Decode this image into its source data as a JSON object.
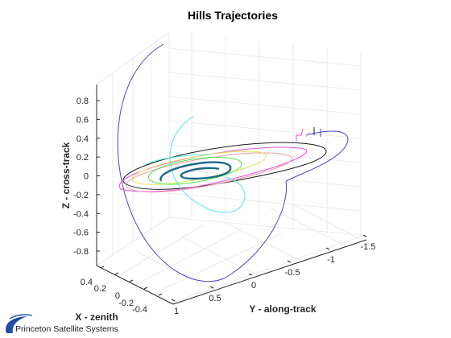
{
  "chart_data": {
    "type": "line",
    "title": "Hills Trajectories",
    "xlabel": "X - zenith",
    "ylabel": "Y - along-track",
    "zlabel": "Z - cross-track",
    "xlim": [
      -0.4,
      0.4
    ],
    "ylim": [
      -1.5,
      1
    ],
    "zlim": [
      -0.8,
      0.8
    ],
    "x_ticks": [
      "0.4",
      "0.2",
      "0",
      "-0.2",
      "-0.4"
    ],
    "y_ticks": [
      "1",
      "0.5",
      "0",
      "-0.5",
      "-1",
      "-1.5"
    ],
    "z_ticks": [
      "0.8",
      "0.6",
      "0.4",
      "0.2",
      "0",
      "-0.2",
      "-0.4",
      "-0.6",
      "-0.8"
    ],
    "grid": true,
    "series": [
      {
        "color": "#4747d6"
      },
      {
        "color": "#1a1a1a"
      },
      {
        "color": "#e64ce6"
      },
      {
        "color": "#f0a0a0"
      },
      {
        "color": "#e6e64c"
      },
      {
        "color": "#4ce6e6"
      },
      {
        "color": "#4ce64c"
      },
      {
        "color": "#1a6b8a"
      }
    ]
  },
  "branding": {
    "company": "Princeton Satellite Systems",
    "logo_icon": "psslogo-swoosh-icon",
    "logo_color": "#1f4ea3"
  }
}
